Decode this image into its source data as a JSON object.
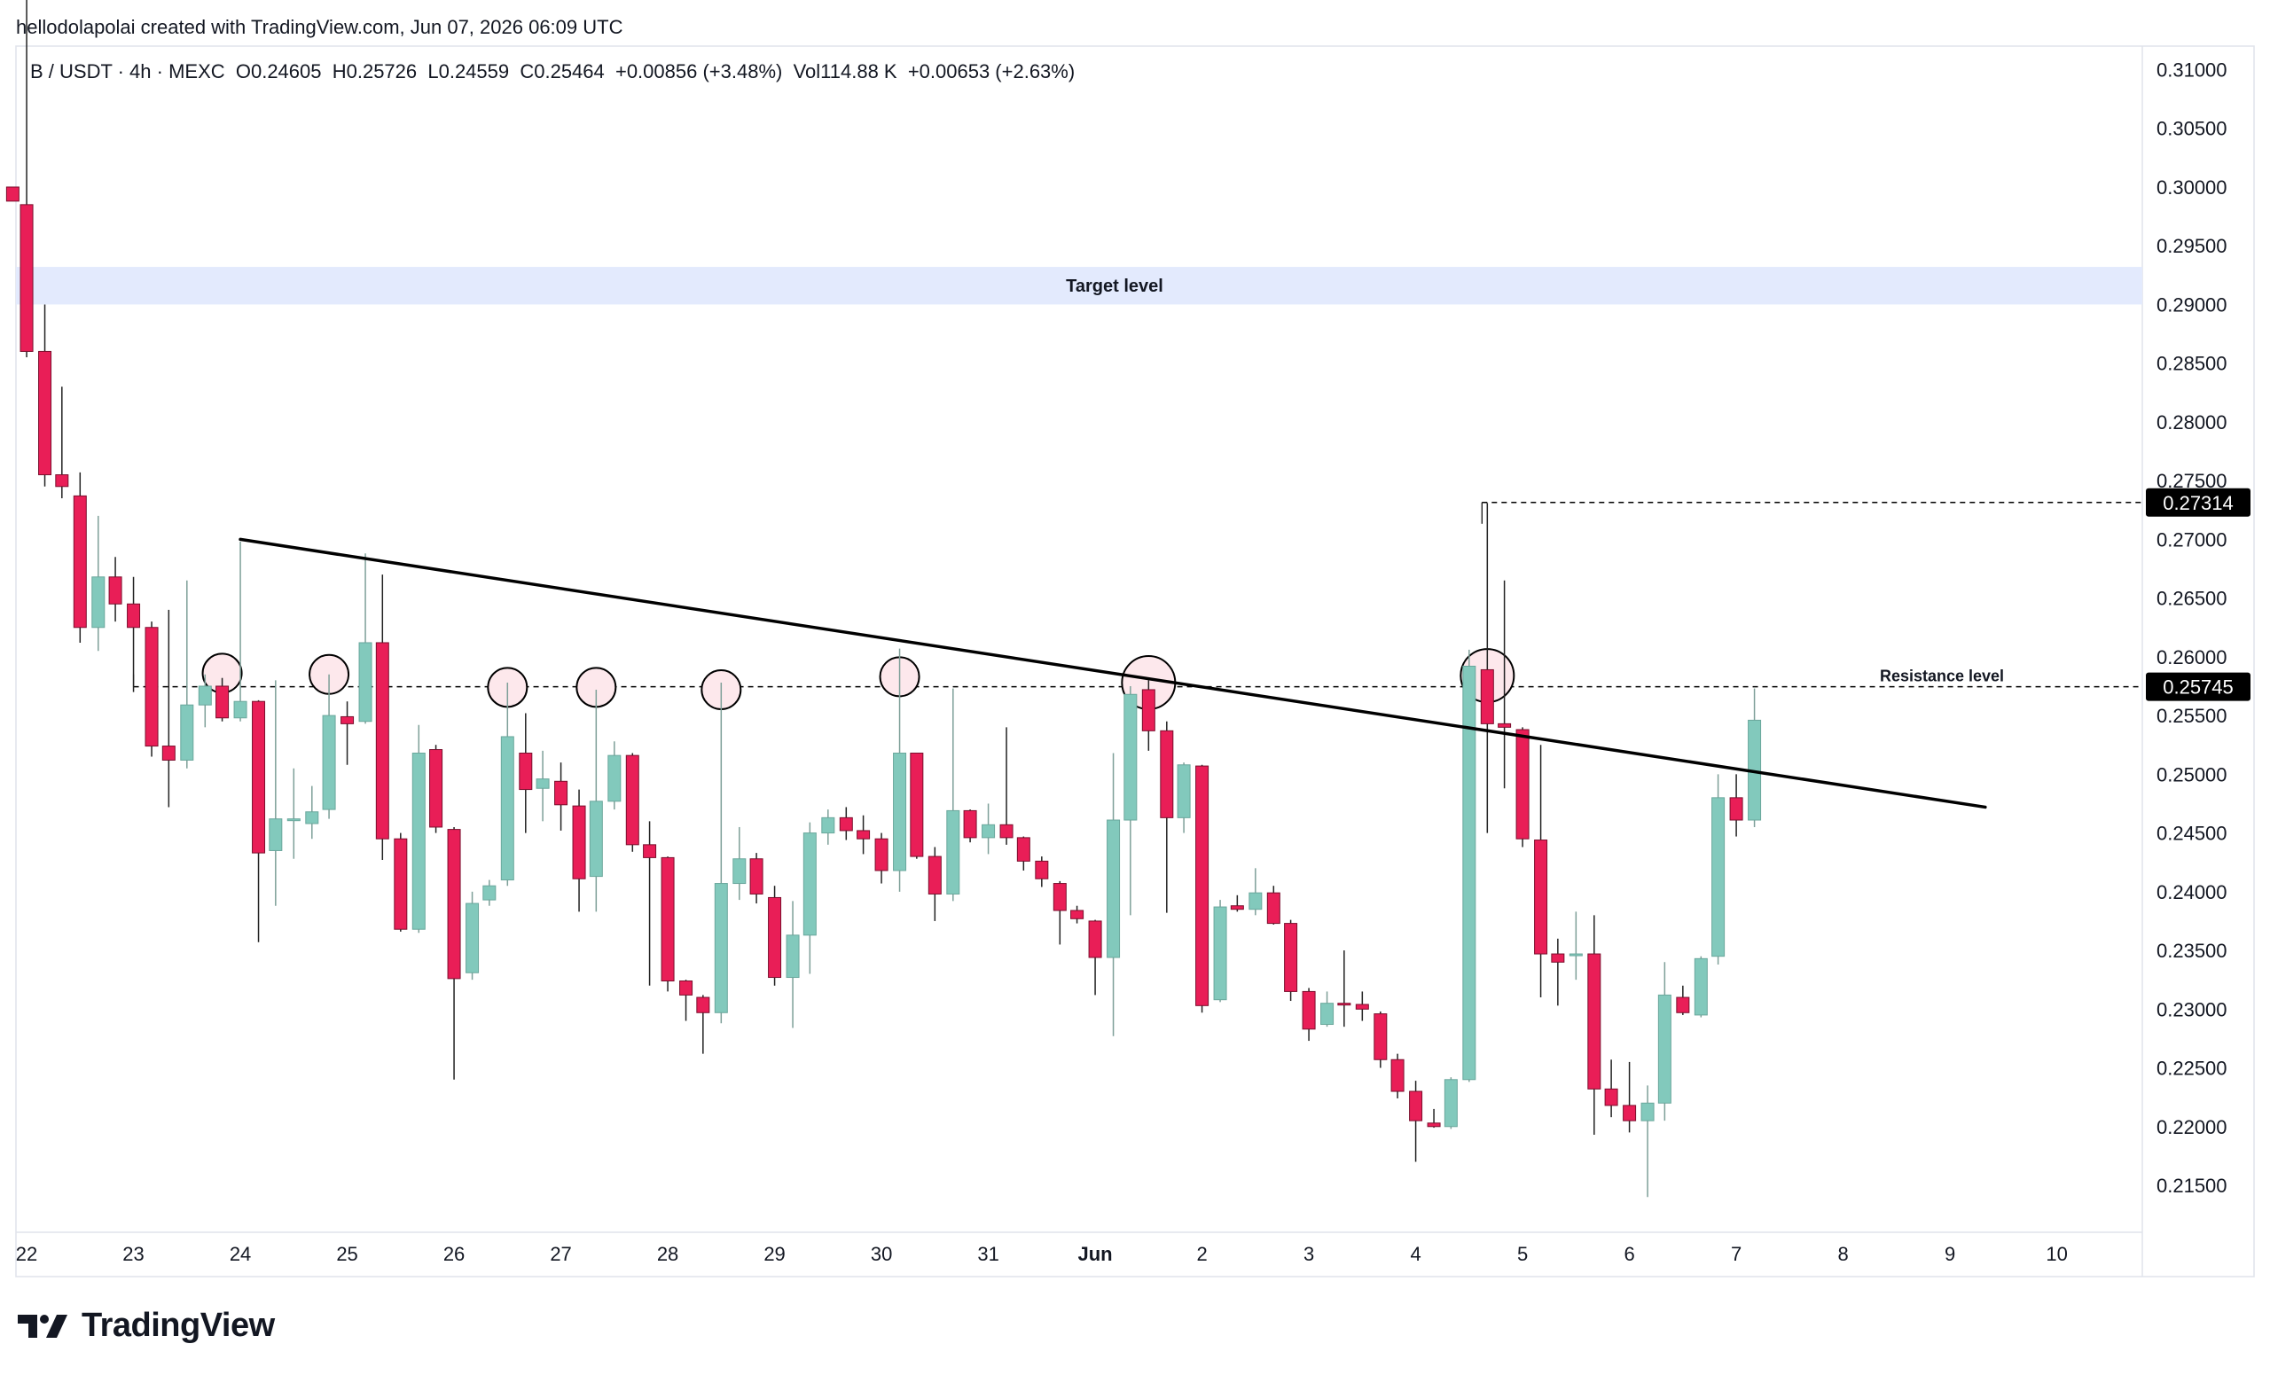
{
  "header": {
    "credit": "hellodolapolai created with TradingView.com, Jun 07, 2026 06:09 UTC",
    "symbol_line": "B / USDT · 4h · MEXC  O0.24605  H0.25726  L0.24559  C0.25464  +0.00856 (+3.48%)  Vol114.88 K  +0.00653 (+2.63%)"
  },
  "brand": {
    "name": "TradingView"
  },
  "colors": {
    "up": "#82c9bc",
    "down": "#e91e57",
    "zone": "#e3eafd",
    "marker_fill": "#fde8ec",
    "line": "#000000"
  },
  "chart_data": {
    "type": "candlestick",
    "timeframe": "4h",
    "ylim": [
      0.211,
      0.312
    ],
    "xlim": [
      -0.1,
      19.8
    ],
    "y_ticks": [
      "0.31000",
      "0.30500",
      "0.30000",
      "0.29500",
      "0.29000",
      "0.28500",
      "0.28000",
      "0.27500",
      "0.27000",
      "0.26500",
      "0.26000",
      "0.25500",
      "0.25000",
      "0.24500",
      "0.24000",
      "0.23500",
      "0.23000",
      "0.22500",
      "0.22000",
      "0.21500"
    ],
    "x_ticks": [
      {
        "label": "22",
        "x": 0,
        "bold": false
      },
      {
        "label": "23",
        "x": 1,
        "bold": false
      },
      {
        "label": "24",
        "x": 2,
        "bold": false
      },
      {
        "label": "25",
        "x": 3,
        "bold": false
      },
      {
        "label": "26",
        "x": 4,
        "bold": false
      },
      {
        "label": "27",
        "x": 5,
        "bold": false
      },
      {
        "label": "28",
        "x": 6,
        "bold": false
      },
      {
        "label": "29",
        "x": 7,
        "bold": false
      },
      {
        "label": "30",
        "x": 8,
        "bold": false
      },
      {
        "label": "31",
        "x": 9,
        "bold": false
      },
      {
        "label": "Jun",
        "x": 10,
        "bold": true
      },
      {
        "label": "2",
        "x": 11,
        "bold": false
      },
      {
        "label": "3",
        "x": 12,
        "bold": false
      },
      {
        "label": "4",
        "x": 13,
        "bold": false
      },
      {
        "label": "5",
        "x": 14,
        "bold": false
      },
      {
        "label": "6",
        "x": 15,
        "bold": false
      },
      {
        "label": "7",
        "x": 16,
        "bold": false
      },
      {
        "label": "8",
        "x": 17,
        "bold": false
      },
      {
        "label": "9",
        "x": 18,
        "bold": false
      },
      {
        "label": "10",
        "x": 19,
        "bold": false
      }
    ],
    "candles": [
      {
        "t": -0.13,
        "o": 0.3,
        "h": 0.3,
        "l": 0.2988,
        "c": 0.2988
      },
      {
        "t": 0.0,
        "o": 0.2985,
        "h": 0.3164,
        "l": 0.2855,
        "c": 0.286
      },
      {
        "t": 0.17,
        "o": 0.286,
        "h": 0.29,
        "l": 0.2745,
        "c": 0.2755
      },
      {
        "t": 0.33,
        "o": 0.2755,
        "h": 0.283,
        "l": 0.2735,
        "c": 0.2745
      },
      {
        "t": 0.5,
        "o": 0.2737,
        "h": 0.2757,
        "l": 0.2612,
        "c": 0.2625
      },
      {
        "t": 0.67,
        "o": 0.2625,
        "h": 0.272,
        "l": 0.2605,
        "c": 0.2668
      },
      {
        "t": 0.83,
        "o": 0.2668,
        "h": 0.2685,
        "l": 0.263,
        "c": 0.2645
      },
      {
        "t": 1.0,
        "o": 0.2645,
        "h": 0.2668,
        "l": 0.257,
        "c": 0.2625
      },
      {
        "t": 1.17,
        "o": 0.2625,
        "h": 0.263,
        "l": 0.2515,
        "c": 0.2524
      },
      {
        "t": 1.33,
        "o": 0.2524,
        "h": 0.264,
        "l": 0.2472,
        "c": 0.2512
      },
      {
        "t": 1.5,
        "o": 0.2512,
        "h": 0.2665,
        "l": 0.2505,
        "c": 0.2559
      },
      {
        "t": 1.67,
        "o": 0.2559,
        "h": 0.2585,
        "l": 0.254,
        "c": 0.2575
      },
      {
        "t": 1.83,
        "o": 0.2575,
        "h": 0.2582,
        "l": 0.2545,
        "c": 0.2548
      },
      {
        "t": 2.0,
        "o": 0.2548,
        "h": 0.2698,
        "l": 0.2545,
        "c": 0.2562
      },
      {
        "t": 2.17,
        "o": 0.2562,
        "h": 0.2563,
        "l": 0.2357,
        "c": 0.2433
      },
      {
        "t": 2.33,
        "o": 0.2435,
        "h": 0.258,
        "l": 0.2388,
        "c": 0.2462
      },
      {
        "t": 2.5,
        "o": 0.2462,
        "h": 0.2505,
        "l": 0.2428,
        "c": 0.2462
      },
      {
        "t": 2.67,
        "o": 0.2458,
        "h": 0.249,
        "l": 0.2445,
        "c": 0.2468
      },
      {
        "t": 2.83,
        "o": 0.247,
        "h": 0.2585,
        "l": 0.2462,
        "c": 0.255
      },
      {
        "t": 3.0,
        "o": 0.2549,
        "h": 0.2562,
        "l": 0.2508,
        "c": 0.2543
      },
      {
        "t": 3.17,
        "o": 0.2545,
        "h": 0.2688,
        "l": 0.2543,
        "c": 0.2612
      },
      {
        "t": 3.33,
        "o": 0.2612,
        "h": 0.267,
        "l": 0.2427,
        "c": 0.2445
      },
      {
        "t": 3.5,
        "o": 0.2445,
        "h": 0.245,
        "l": 0.2366,
        "c": 0.2368
      },
      {
        "t": 3.67,
        "o": 0.2368,
        "h": 0.2542,
        "l": 0.2365,
        "c": 0.2518
      },
      {
        "t": 3.83,
        "o": 0.2521,
        "h": 0.2525,
        "l": 0.245,
        "c": 0.2455
      },
      {
        "t": 4.0,
        "o": 0.2453,
        "h": 0.2455,
        "l": 0.224,
        "c": 0.2326
      },
      {
        "t": 4.17,
        "o": 0.2331,
        "h": 0.24,
        "l": 0.2325,
        "c": 0.239
      },
      {
        "t": 4.33,
        "o": 0.2393,
        "h": 0.241,
        "l": 0.2388,
        "c": 0.2405
      },
      {
        "t": 4.5,
        "o": 0.241,
        "h": 0.2578,
        "l": 0.2405,
        "c": 0.2532
      },
      {
        "t": 4.67,
        "o": 0.2518,
        "h": 0.2552,
        "l": 0.245,
        "c": 0.2487
      },
      {
        "t": 4.83,
        "o": 0.2488,
        "h": 0.252,
        "l": 0.246,
        "c": 0.2496
      },
      {
        "t": 5.0,
        "o": 0.2494,
        "h": 0.251,
        "l": 0.2452,
        "c": 0.2474
      },
      {
        "t": 5.17,
        "o": 0.2473,
        "h": 0.2487,
        "l": 0.2383,
        "c": 0.2411
      },
      {
        "t": 5.33,
        "o": 0.2413,
        "h": 0.2572,
        "l": 0.2383,
        "c": 0.2477
      },
      {
        "t": 5.5,
        "o": 0.2477,
        "h": 0.2528,
        "l": 0.247,
        "c": 0.2516
      },
      {
        "t": 5.67,
        "o": 0.2516,
        "h": 0.2518,
        "l": 0.2434,
        "c": 0.244
      },
      {
        "t": 5.83,
        "o": 0.244,
        "h": 0.246,
        "l": 0.232,
        "c": 0.2429
      },
      {
        "t": 6.0,
        "o": 0.2429,
        "h": 0.243,
        "l": 0.2315,
        "c": 0.2324
      },
      {
        "t": 6.17,
        "o": 0.2324,
        "h": 0.2325,
        "l": 0.229,
        "c": 0.2312
      },
      {
        "t": 6.33,
        "o": 0.231,
        "h": 0.2312,
        "l": 0.2262,
        "c": 0.2297
      },
      {
        "t": 6.5,
        "o": 0.2297,
        "h": 0.2578,
        "l": 0.2288,
        "c": 0.2407
      },
      {
        "t": 6.67,
        "o": 0.2407,
        "h": 0.2455,
        "l": 0.2393,
        "c": 0.2428
      },
      {
        "t": 6.83,
        "o": 0.2428,
        "h": 0.2433,
        "l": 0.239,
        "c": 0.2398
      },
      {
        "t": 7.0,
        "o": 0.2395,
        "h": 0.2405,
        "l": 0.232,
        "c": 0.2327
      },
      {
        "t": 7.17,
        "o": 0.2327,
        "h": 0.2392,
        "l": 0.2284,
        "c": 0.2363
      },
      {
        "t": 7.33,
        "o": 0.2363,
        "h": 0.2459,
        "l": 0.233,
        "c": 0.245
      },
      {
        "t": 7.5,
        "o": 0.245,
        "h": 0.247,
        "l": 0.244,
        "c": 0.2463
      },
      {
        "t": 7.67,
        "o": 0.2463,
        "h": 0.2472,
        "l": 0.2444,
        "c": 0.2452
      },
      {
        "t": 7.83,
        "o": 0.2452,
        "h": 0.2465,
        "l": 0.2432,
        "c": 0.2445
      },
      {
        "t": 8.0,
        "o": 0.2445,
        "h": 0.245,
        "l": 0.2407,
        "c": 0.2418
      },
      {
        "t": 8.17,
        "o": 0.2418,
        "h": 0.2607,
        "l": 0.24,
        "c": 0.2518
      },
      {
        "t": 8.33,
        "o": 0.2518,
        "h": 0.2518,
        "l": 0.2428,
        "c": 0.243
      },
      {
        "t": 8.5,
        "o": 0.243,
        "h": 0.2438,
        "l": 0.2375,
        "c": 0.2398
      },
      {
        "t": 8.67,
        "o": 0.2398,
        "h": 0.2573,
        "l": 0.2392,
        "c": 0.2469
      },
      {
        "t": 8.83,
        "o": 0.2469,
        "h": 0.247,
        "l": 0.2442,
        "c": 0.2446
      },
      {
        "t": 9.0,
        "o": 0.2446,
        "h": 0.2475,
        "l": 0.2432,
        "c": 0.2457
      },
      {
        "t": 9.17,
        "o": 0.2457,
        "h": 0.254,
        "l": 0.244,
        "c": 0.2446
      },
      {
        "t": 9.33,
        "o": 0.2446,
        "h": 0.2447,
        "l": 0.2418,
        "c": 0.2426
      },
      {
        "t": 9.5,
        "o": 0.2426,
        "h": 0.243,
        "l": 0.2404,
        "c": 0.2411
      },
      {
        "t": 9.67,
        "o": 0.2407,
        "h": 0.2409,
        "l": 0.2355,
        "c": 0.2384
      },
      {
        "t": 9.83,
        "o": 0.2384,
        "h": 0.2388,
        "l": 0.2373,
        "c": 0.2377
      },
      {
        "t": 10.0,
        "o": 0.2375,
        "h": 0.2376,
        "l": 0.2312,
        "c": 0.2344
      },
      {
        "t": 10.17,
        "o": 0.2344,
        "h": 0.2518,
        "l": 0.2277,
        "c": 0.2461
      },
      {
        "t": 10.33,
        "o": 0.2461,
        "h": 0.2575,
        "l": 0.238,
        "c": 0.2568
      },
      {
        "t": 10.5,
        "o": 0.2572,
        "h": 0.258,
        "l": 0.252,
        "c": 0.2537
      },
      {
        "t": 10.67,
        "o": 0.2537,
        "h": 0.2545,
        "l": 0.2382,
        "c": 0.2463
      },
      {
        "t": 10.83,
        "o": 0.2463,
        "h": 0.251,
        "l": 0.245,
        "c": 0.2508
      },
      {
        "t": 11.0,
        "o": 0.2507,
        "h": 0.2508,
        "l": 0.2297,
        "c": 0.2303
      },
      {
        "t": 11.17,
        "o": 0.2308,
        "h": 0.2393,
        "l": 0.2306,
        "c": 0.2387
      },
      {
        "t": 11.33,
        "o": 0.2388,
        "h": 0.2397,
        "l": 0.2383,
        "c": 0.2385
      },
      {
        "t": 11.5,
        "o": 0.2385,
        "h": 0.242,
        "l": 0.238,
        "c": 0.2399
      },
      {
        "t": 11.67,
        "o": 0.2399,
        "h": 0.2405,
        "l": 0.2372,
        "c": 0.2373
      },
      {
        "t": 11.83,
        "o": 0.2373,
        "h": 0.2376,
        "l": 0.2307,
        "c": 0.2315
      },
      {
        "t": 12.0,
        "o": 0.2315,
        "h": 0.2318,
        "l": 0.2273,
        "c": 0.2283
      },
      {
        "t": 12.17,
        "o": 0.2287,
        "h": 0.2315,
        "l": 0.2285,
        "c": 0.2305
      },
      {
        "t": 12.33,
        "o": 0.2305,
        "h": 0.235,
        "l": 0.2285,
        "c": 0.2304
      },
      {
        "t": 12.5,
        "o": 0.2304,
        "h": 0.2315,
        "l": 0.229,
        "c": 0.23
      },
      {
        "t": 12.67,
        "o": 0.2296,
        "h": 0.2298,
        "l": 0.225,
        "c": 0.2257
      },
      {
        "t": 12.83,
        "o": 0.2257,
        "h": 0.2262,
        "l": 0.2224,
        "c": 0.223
      },
      {
        "t": 13.0,
        "o": 0.223,
        "h": 0.2239,
        "l": 0.217,
        "c": 0.2205
      },
      {
        "t": 13.17,
        "o": 0.2203,
        "h": 0.2215,
        "l": 0.2199,
        "c": 0.22
      },
      {
        "t": 13.33,
        "o": 0.22,
        "h": 0.2242,
        "l": 0.2198,
        "c": 0.224
      },
      {
        "t": 13.5,
        "o": 0.224,
        "h": 0.2606,
        "l": 0.2238,
        "c": 0.2592
      },
      {
        "t": 13.67,
        "o": 0.2589,
        "h": 0.2731,
        "l": 0.245,
        "c": 0.2543
      },
      {
        "t": 13.83,
        "o": 0.2543,
        "h": 0.2665,
        "l": 0.2488,
        "c": 0.254
      },
      {
        "t": 14.0,
        "o": 0.2538,
        "h": 0.254,
        "l": 0.2438,
        "c": 0.2445
      },
      {
        "t": 14.17,
        "o": 0.2444,
        "h": 0.2525,
        "l": 0.231,
        "c": 0.2347
      },
      {
        "t": 14.33,
        "o": 0.2347,
        "h": 0.236,
        "l": 0.2303,
        "c": 0.234
      },
      {
        "t": 14.5,
        "o": 0.2347,
        "h": 0.2383,
        "l": 0.2325,
        "c": 0.2347
      },
      {
        "t": 14.67,
        "o": 0.2347,
        "h": 0.238,
        "l": 0.2193,
        "c": 0.2232
      },
      {
        "t": 14.83,
        "o": 0.2232,
        "h": 0.2257,
        "l": 0.2208,
        "c": 0.2218
      },
      {
        "t": 15.0,
        "o": 0.2218,
        "h": 0.2255,
        "l": 0.2195,
        "c": 0.2205
      },
      {
        "t": 15.17,
        "o": 0.2205,
        "h": 0.2235,
        "l": 0.214,
        "c": 0.222
      },
      {
        "t": 15.33,
        "o": 0.222,
        "h": 0.234,
        "l": 0.2205,
        "c": 0.2312
      },
      {
        "t": 15.5,
        "o": 0.231,
        "h": 0.232,
        "l": 0.2295,
        "c": 0.2297
      },
      {
        "t": 15.67,
        "o": 0.2295,
        "h": 0.2345,
        "l": 0.2293,
        "c": 0.2343
      },
      {
        "t": 15.83,
        "o": 0.2345,
        "h": 0.25,
        "l": 0.2338,
        "c": 0.248
      },
      {
        "t": 16.0,
        "o": 0.248,
        "h": 0.25,
        "l": 0.2447,
        "c": 0.2461
      },
      {
        "t": 16.17,
        "o": 0.2461,
        "h": 0.2573,
        "l": 0.2455,
        "c": 0.2546
      }
    ],
    "target_zone": {
      "label": "Target level",
      "from": 0.29,
      "to": 0.2932
    },
    "resistance_level": {
      "label": "Resistance level",
      "value": 0.25745,
      "price_label": "0.25745",
      "x_start": 1.0
    },
    "high_line": {
      "value": 0.27314,
      "price_label": "0.27314",
      "x_start": 13.62
    },
    "trendline": {
      "x1": 2.0,
      "y1": 0.27,
      "x2": 18.33,
      "y2": 0.2472
    },
    "touch_markers": [
      {
        "x": 1.83,
        "y": 0.2586,
        "size": "small"
      },
      {
        "x": 2.83,
        "y": 0.2585,
        "size": "small"
      },
      {
        "x": 4.5,
        "y": 0.2574,
        "size": "small"
      },
      {
        "x": 5.33,
        "y": 0.2574,
        "size": "small"
      },
      {
        "x": 6.5,
        "y": 0.2572,
        "size": "small"
      },
      {
        "x": 8.17,
        "y": 0.2583,
        "size": "small"
      },
      {
        "x": 10.5,
        "y": 0.2578,
        "size": "large"
      },
      {
        "x": 13.67,
        "y": 0.2584,
        "size": "large"
      }
    ]
  }
}
